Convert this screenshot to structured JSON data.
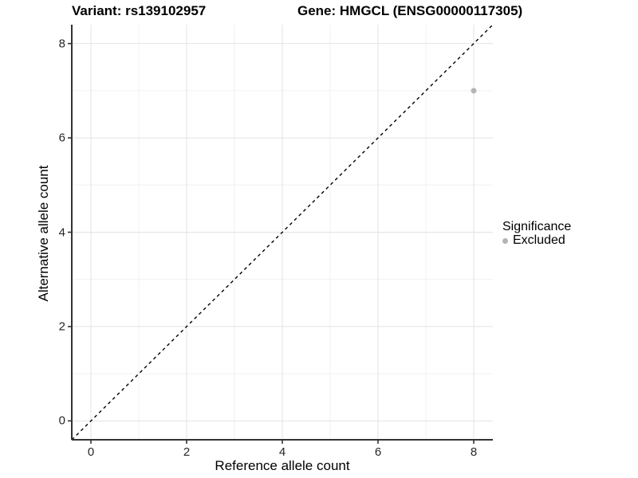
{
  "header": {
    "variant_title": "Variant: rs139102957",
    "gene_title": "Gene: HMGCL (ENSG00000117305)"
  },
  "chart_data": {
    "type": "scatter",
    "title_left": "Variant: rs139102957",
    "title_right": "Gene: HMGCL (ENSG00000117305)",
    "xlabel": "Reference allele count",
    "ylabel": "Alternative allele count",
    "xlim": [
      -0.4,
      8.4
    ],
    "ylim": [
      -0.4,
      8.4
    ],
    "x_ticks": [
      0,
      2,
      4,
      6,
      8
    ],
    "y_ticks": [
      0,
      2,
      4,
      6,
      8
    ],
    "x_minor_ticks": [
      1,
      3,
      5,
      7
    ],
    "y_minor_ticks": [
      1,
      3,
      5,
      7
    ],
    "grid": "major+minor",
    "series": [
      {
        "name": "Excluded",
        "marker": "circle",
        "color": "#b4b4b4",
        "points": [
          {
            "x": 8,
            "y": 7
          }
        ]
      }
    ],
    "reference_line": {
      "meaning": "identity y=x",
      "from": [
        -0.4,
        -0.4
      ],
      "to": [
        8.4,
        8.4
      ],
      "style": "dashed",
      "color": "#000000"
    },
    "legend": {
      "title": "Significance",
      "position": "right",
      "entries": [
        {
          "label": "Excluded",
          "color": "#b4b4b4",
          "marker": "circle"
        }
      ]
    }
  },
  "colors": {
    "background": "#ffffff",
    "grid_major": "#e3e3e3",
    "grid_minor": "#f1f1f1",
    "axis_line": "#333333",
    "tick_mark": "#333333",
    "tick_label": "#262626",
    "point": "#b4b4b4"
  }
}
